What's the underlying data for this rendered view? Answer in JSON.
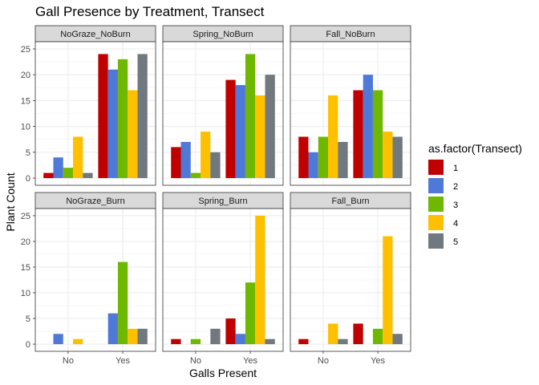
{
  "chart_data": {
    "type": "bar",
    "title": "Gall Presence by Treatment, Transect",
    "xlabel": "Galls Present",
    "ylabel": "Plant Count",
    "categories": [
      "No",
      "Yes"
    ],
    "ylim": [
      0,
      25
    ],
    "yticks": [
      0,
      5,
      10,
      15,
      20,
      25
    ],
    "grid": true,
    "legend": {
      "title": "as.factor(Transect)",
      "placement": "right",
      "entries": [
        "1",
        "2",
        "3",
        "4",
        "5"
      ]
    },
    "colors": [
      "#c00000",
      "#4f79d8",
      "#6fb800",
      "#ffc000",
      "#707880"
    ],
    "panels": [
      {
        "name": "NoGraze_NoBurn",
        "series": [
          {
            "name": "1",
            "values": [
              1,
              24
            ]
          },
          {
            "name": "2",
            "values": [
              4,
              21
            ]
          },
          {
            "name": "3",
            "values": [
              2,
              23
            ]
          },
          {
            "name": "4",
            "values": [
              8,
              17
            ]
          },
          {
            "name": "5",
            "values": [
              1,
              24
            ]
          }
        ]
      },
      {
        "name": "Spring_NoBurn",
        "series": [
          {
            "name": "1",
            "values": [
              6,
              19
            ]
          },
          {
            "name": "2",
            "values": [
              7,
              18
            ]
          },
          {
            "name": "3",
            "values": [
              1,
              24
            ]
          },
          {
            "name": "4",
            "values": [
              9,
              16
            ]
          },
          {
            "name": "5",
            "values": [
              5,
              20
            ]
          }
        ]
      },
      {
        "name": "Fall_NoBurn",
        "series": [
          {
            "name": "1",
            "values": [
              8,
              17
            ]
          },
          {
            "name": "2",
            "values": [
              5,
              20
            ]
          },
          {
            "name": "3",
            "values": [
              8,
              17
            ]
          },
          {
            "name": "4",
            "values": [
              16,
              9
            ]
          },
          {
            "name": "5",
            "values": [
              7,
              8
            ]
          }
        ]
      },
      {
        "name": "NoGraze_Burn",
        "series": [
          {
            "name": "1",
            "values": [
              null,
              null
            ]
          },
          {
            "name": "2",
            "values": [
              2,
              6
            ]
          },
          {
            "name": "3",
            "values": [
              null,
              16
            ]
          },
          {
            "name": "4",
            "values": [
              1,
              3
            ]
          },
          {
            "name": "5",
            "values": [
              null,
              3
            ]
          }
        ]
      },
      {
        "name": "Spring_Burn",
        "series": [
          {
            "name": "1",
            "values": [
              1,
              5
            ]
          },
          {
            "name": "2",
            "values": [
              null,
              2
            ]
          },
          {
            "name": "3",
            "values": [
              1,
              12
            ]
          },
          {
            "name": "4",
            "values": [
              null,
              25
            ]
          },
          {
            "name": "5",
            "values": [
              3,
              1
            ]
          }
        ]
      },
      {
        "name": "Fall_Burn",
        "series": [
          {
            "name": "1",
            "values": [
              1,
              4
            ]
          },
          {
            "name": "2",
            "values": [
              null,
              null
            ]
          },
          {
            "name": "3",
            "values": [
              null,
              3
            ]
          },
          {
            "name": "4",
            "values": [
              4,
              21
            ]
          },
          {
            "name": "5",
            "values": [
              1,
              2
            ]
          }
        ]
      }
    ]
  }
}
